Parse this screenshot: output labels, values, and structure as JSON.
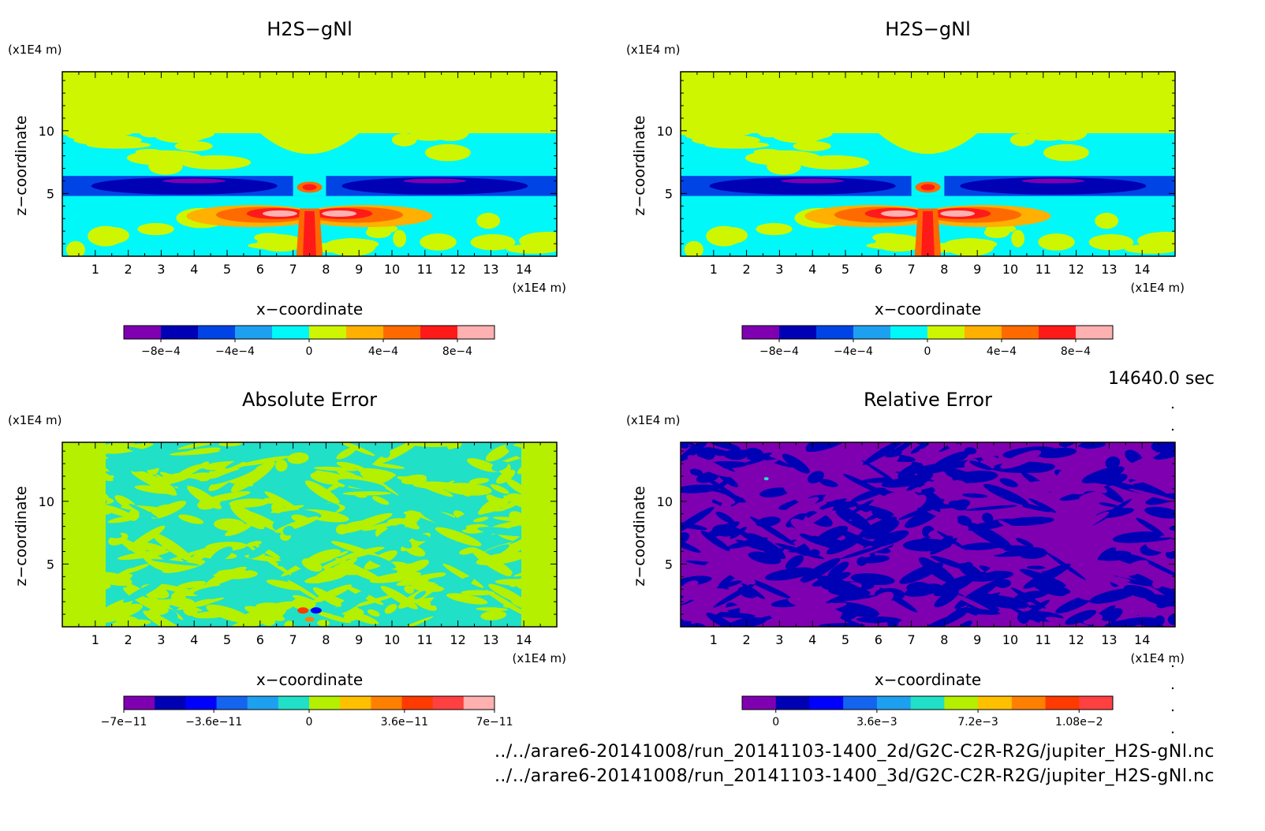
{
  "time_label": "14640.0 sec",
  "footer": {
    "line1": "../../arare6-20141008/run_20141103-1400_2d/G2C-C2R-R2G/jupiter_H2S-gNl.nc",
    "line2": "../../arare6-20141008/run_20141103-1400_3d/G2C-C2R-R2G/jupiter_H2S-gNl.nc"
  },
  "chart_data": [
    {
      "type": "heatmap",
      "title": "H2S−gNl",
      "xlabel": "x−coordinate",
      "ylabel": "z−coordinate",
      "x_unit": "(x1E4 m)",
      "y_unit": "(x1E4 m)",
      "xlim": [
        0,
        15
      ],
      "ylim": [
        0,
        14.7
      ],
      "x_ticks": [
        "1",
        "2",
        "3",
        "4",
        "5",
        "6",
        "7",
        "8",
        "9",
        "10",
        "11",
        "12",
        "13",
        "14"
      ],
      "y_ticks": [
        "5",
        "10"
      ],
      "colorbar": {
        "colors": [
          "#7f00b0",
          "#0000b4",
          "#0044e6",
          "#1ea0f0",
          "#00f8f8",
          "#cdf600",
          "#ffb000",
          "#ff6a00",
          "#ff1a1a",
          "#ffb0b0"
        ],
        "tick_labels": [
          "−8e−4",
          "−4e−4",
          "0",
          "4e−4",
          "8e−4"
        ],
        "tick_positions": [
          -0.0008,
          -0.0004,
          0,
          0.0004,
          0.0008
        ],
        "range": [
          -0.001,
          0.001
        ]
      }
    },
    {
      "type": "heatmap",
      "title": "H2S−gNl",
      "xlabel": "x−coordinate",
      "ylabel": "z−coordinate",
      "x_unit": "(x1E4 m)",
      "y_unit": "(x1E4 m)",
      "xlim": [
        0,
        15
      ],
      "ylim": [
        0,
        14.7
      ],
      "x_ticks": [
        "1",
        "2",
        "3",
        "4",
        "5",
        "6",
        "7",
        "8",
        "9",
        "10",
        "11",
        "12",
        "13",
        "14"
      ],
      "y_ticks": [
        "5",
        "10"
      ],
      "colorbar": {
        "colors": [
          "#7f00b0",
          "#0000b4",
          "#0044e6",
          "#1ea0f0",
          "#00f8f8",
          "#cdf600",
          "#ffb000",
          "#ff6a00",
          "#ff1a1a",
          "#ffb0b0"
        ],
        "tick_labels": [
          "−8e−4",
          "−4e−4",
          "0",
          "4e−4",
          "8e−4"
        ],
        "tick_positions": [
          -0.0008,
          -0.0004,
          0,
          0.0004,
          0.0008
        ],
        "range": [
          -0.001,
          0.001
        ]
      }
    },
    {
      "type": "heatmap",
      "title": "Absolute Error",
      "xlabel": "x−coordinate",
      "ylabel": "z−coordinate",
      "x_unit": "(x1E4 m)",
      "y_unit": "(x1E4 m)",
      "xlim": [
        0,
        15
      ],
      "ylim": [
        0,
        14.7
      ],
      "x_ticks": [
        "1",
        "2",
        "3",
        "4",
        "5",
        "6",
        "7",
        "8",
        "9",
        "10",
        "11",
        "12",
        "13",
        "14"
      ],
      "y_ticks": [
        "5",
        "10"
      ],
      "colorbar": {
        "colors": [
          "#7f00b0",
          "#0000b4",
          "#0000ff",
          "#1464f0",
          "#1ea0f0",
          "#20e0c8",
          "#b4f000",
          "#ffc000",
          "#ff8000",
          "#ff3a00",
          "#ff4040",
          "#ffb0b0"
        ],
        "tick_labels": [
          "−7e−11",
          "−3.6e−11",
          "0",
          "3.6e−11",
          "7e−11"
        ],
        "tick_positions": [
          -7e-11,
          -3.6e-11,
          0,
          3.6e-11,
          7e-11
        ],
        "range": [
          -7e-11,
          7e-11
        ]
      }
    },
    {
      "type": "heatmap",
      "title": "Relative Error",
      "xlabel": "x−coordinate",
      "ylabel": "z−coordinate",
      "x_unit": "(x1E4 m)",
      "y_unit": "(x1E4 m)",
      "xlim": [
        0,
        15
      ],
      "ylim": [
        0,
        14.7
      ],
      "x_ticks": [
        "1",
        "2",
        "3",
        "4",
        "5",
        "6",
        "7",
        "8",
        "9",
        "10",
        "11",
        "12",
        "13",
        "14"
      ],
      "y_ticks": [
        "5",
        "10"
      ],
      "colorbar": {
        "colors": [
          "#7f00b0",
          "#0000b4",
          "#0000ff",
          "#1464f0",
          "#1ea0f0",
          "#20e0c8",
          "#b4f000",
          "#ffc000",
          "#ff8000",
          "#ff3a00",
          "#ff4040"
        ],
        "tick_labels": [
          "0",
          "3.6e−3",
          "7.2e−3",
          "1.08e−2"
        ],
        "tick_positions": [
          0,
          0.0036,
          0.0072,
          0.0108
        ],
        "range": [
          -0.0012,
          0.012
        ]
      }
    }
  ]
}
